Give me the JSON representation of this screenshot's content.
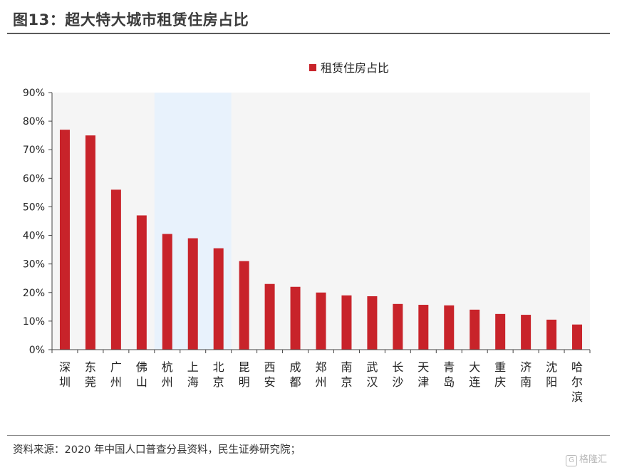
{
  "header": {
    "title": "图13：超大特大城市租赁住房占比"
  },
  "footer": {
    "source": "资料来源：2020 年中国人口普查分县资料，民生证券研究院；",
    "watermark": "格隆汇",
    "watermark_mark": "G"
  },
  "colors": {
    "bar": "#c8232a",
    "plot_bg": "#f5f5f5",
    "highlight": "#e8f2fc",
    "axis": "#444444"
  },
  "chart_data": {
    "type": "bar",
    "title": "",
    "xlabel": "",
    "ylabel": "",
    "ylim": [
      0,
      0.9
    ],
    "yticks": [
      "0%",
      "10%",
      "20%",
      "30%",
      "40%",
      "50%",
      "60%",
      "70%",
      "80%",
      "90%"
    ],
    "grid": false,
    "legend_position": "top-right",
    "highlight_categories": [
      "杭州",
      "上海",
      "北京"
    ],
    "categories": [
      "深圳",
      "东莞",
      "广州",
      "佛山",
      "杭州",
      "上海",
      "北京",
      "昆明",
      "西安",
      "成都",
      "郑州",
      "南京",
      "武汉",
      "长沙",
      "天津",
      "青岛",
      "大连",
      "重庆",
      "济南",
      "沈阳",
      "哈尔滨"
    ],
    "series": [
      {
        "name": "租赁住房占比",
        "values": [
          0.77,
          0.75,
          0.56,
          0.47,
          0.405,
          0.39,
          0.355,
          0.31,
          0.23,
          0.22,
          0.2,
          0.19,
          0.187,
          0.16,
          0.157,
          0.155,
          0.14,
          0.125,
          0.122,
          0.105,
          0.088
        ]
      }
    ]
  }
}
